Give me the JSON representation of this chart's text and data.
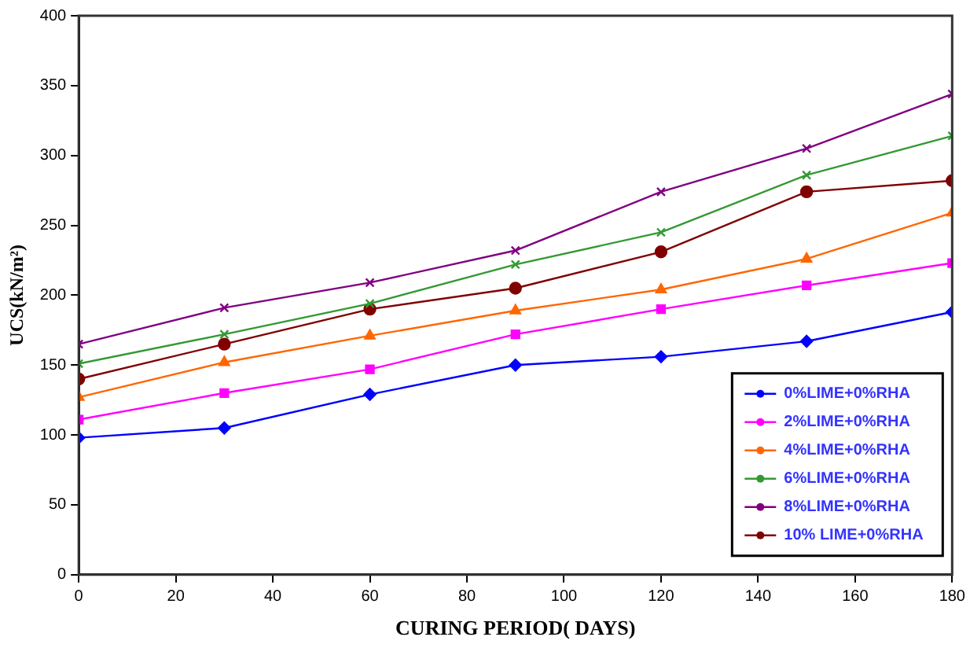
{
  "chart_data": {
    "type": "line",
    "xlabel": "CURING PERIOD( DAYS)",
    "ylabel": "UCS(kN/m²)",
    "x": [
      0,
      30,
      60,
      90,
      120,
      150,
      180
    ],
    "series": [
      {
        "name": "0%LIME+0%RHA",
        "color": "#0000ff",
        "marker": "diamond",
        "values": [
          98,
          105,
          129,
          150,
          156,
          167,
          188
        ]
      },
      {
        "name": "2%LIME+0%RHA",
        "color": "#ff00ff",
        "marker": "square",
        "values": [
          111,
          130,
          147,
          172,
          190,
          207,
          223
        ]
      },
      {
        "name": "4%LIME+0%RHA",
        "color": "#ff6600",
        "marker": "triangle",
        "values": [
          127,
          152,
          171,
          189,
          204,
          226,
          259
        ]
      },
      {
        "name": "6%LIME+0%RHA",
        "color": "#339933",
        "marker": "cross",
        "values": [
          151,
          172,
          194,
          222,
          245,
          286,
          314
        ]
      },
      {
        "name": "8%LIME+0%RHA",
        "color": "#800080",
        "marker": "cross",
        "values": [
          165,
          191,
          209,
          232,
          274,
          305,
          344
        ]
      },
      {
        "name": "10% LIME+0%RHA",
        "color": "#800000",
        "marker": "circle",
        "values": [
          140,
          165,
          190,
          205,
          231,
          274,
          282
        ]
      }
    ],
    "xlim": [
      0,
      180
    ],
    "xticks": [
      0,
      20,
      40,
      60,
      80,
      100,
      120,
      140,
      160,
      180
    ],
    "ylim": [
      0,
      400
    ],
    "yticks": [
      0,
      50,
      100,
      150,
      200,
      250,
      300,
      350,
      400
    ],
    "grid": false,
    "legend": "bottom right"
  }
}
